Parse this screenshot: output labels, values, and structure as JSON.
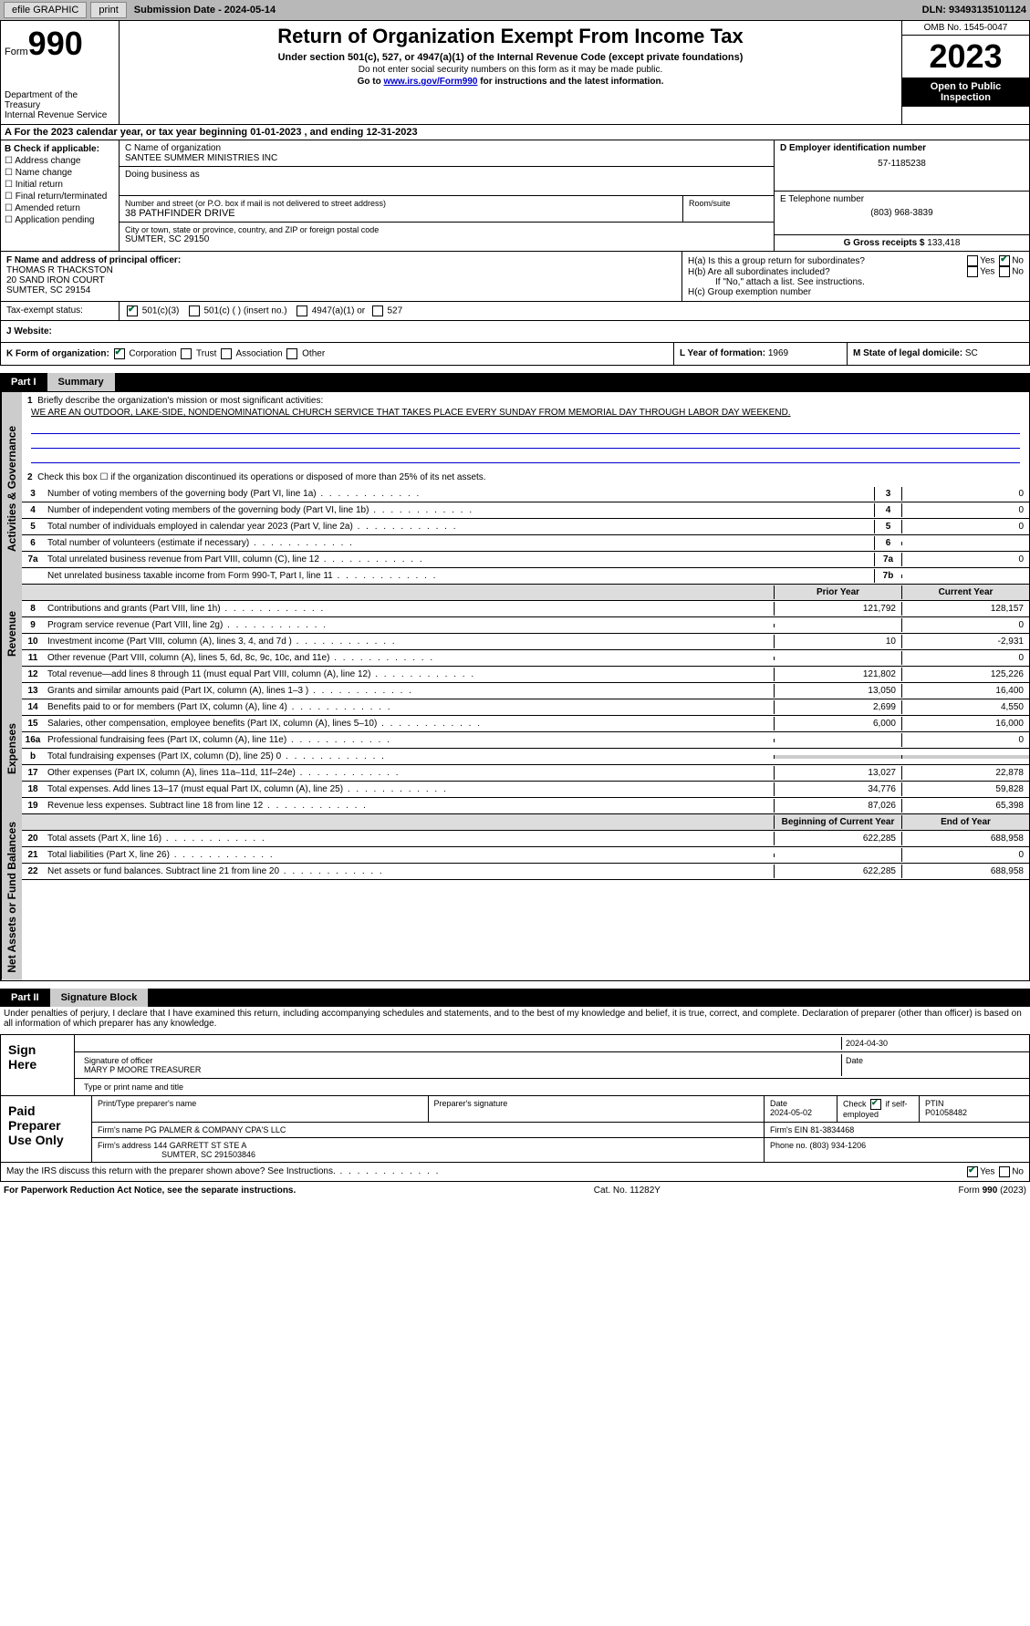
{
  "topbar": {
    "efile": "efile GRAPHIC",
    "print": "print",
    "submission_label": "Submission Date - ",
    "submission_date": "2024-05-14",
    "dln_label": "DLN: ",
    "dln": "93493135101124"
  },
  "header": {
    "form_label": "Form",
    "form_num": "990",
    "dept1": "Department of the Treasury",
    "dept2": "Internal Revenue Service",
    "title": "Return of Organization Exempt From Income Tax",
    "subtitle": "Under section 501(c), 527, or 4947(a)(1) of the Internal Revenue Code (except private foundations)",
    "instr1": "Do not enter social security numbers on this form as it may be made public.",
    "instr2_pre": "Go to ",
    "instr2_link": "www.irs.gov/Form990",
    "instr2_post": " for instructions and the latest information.",
    "omb": "OMB No. 1545-0047",
    "year": "2023",
    "open": "Open to Public Inspection"
  },
  "sectionA": {
    "text": "A  For the 2023 calendar year, or tax year beginning 01-01-2023    , and ending 12-31-2023"
  },
  "colB": {
    "label": "B Check if applicable:",
    "items": [
      "Address change",
      "Name change",
      "Initial return",
      "Final return/terminated",
      "Amended return",
      "Application pending"
    ]
  },
  "colC": {
    "name_label": "C Name of organization",
    "name": "SANTEE SUMMER MINISTRIES INC",
    "dba_label": "Doing business as",
    "addr_label": "Number and street (or P.O. box if mail is not delivered to street address)",
    "addr": "38 PATHFINDER DRIVE",
    "room_label": "Room/suite",
    "city_label": "City or town, state or province, country, and ZIP or foreign postal code",
    "city": "SUMTER, SC  29150"
  },
  "colD": {
    "ein_label": "D Employer identification number",
    "ein": "57-1185238",
    "phone_label": "E Telephone number",
    "phone": "(803) 968-3839",
    "gross_label": "G Gross receipts $ ",
    "gross": "133,418"
  },
  "rowF": {
    "label": "F  Name and address of principal officer:",
    "name": "THOMAS R THACKSTON",
    "addr": "20 SAND IRON COURT",
    "city": "SUMTER, SC  29154"
  },
  "rowH": {
    "ha_label": "H(a)  Is this a group return for subordinates?",
    "hb_label": "H(b)  Are all subordinates included?",
    "hb_note": "If \"No,\" attach a list. See instructions.",
    "hc_label": "H(c)  Group exemption number ",
    "yes": "Yes",
    "no": "No"
  },
  "rowI": {
    "label": "Tax-exempt status:",
    "opt1": "501(c)(3)",
    "opt2": "501(c) (  ) (insert no.)",
    "opt3": "4947(a)(1) or",
    "opt4": "527"
  },
  "rowJ": {
    "label": "J   Website: "
  },
  "rowK": {
    "k_label": "K Form of organization:",
    "corp": "Corporation",
    "trust": "Trust",
    "assoc": "Association",
    "other": "Other",
    "l_label": "L Year of formation: ",
    "l_val": "1969",
    "m_label": "M State of legal domicile: ",
    "m_val": "SC"
  },
  "part1": {
    "num": "Part I",
    "title": "Summary",
    "tab1": "Activities & Governance",
    "tab2": "Revenue",
    "tab3": "Expenses",
    "tab4": "Net Assets or Fund Balances",
    "line1_label": "Briefly describe the organization's mission or most significant activities:",
    "line1_text": "WE ARE AN OUTDOOR, LAKE-SIDE, NONDENOMINATIONAL CHURCH SERVICE THAT TAKES PLACE EVERY SUNDAY FROM MEMORIAL DAY THROUGH LABOR DAY WEEKEND.",
    "line2": "Check this box  ☐  if the organization discontinued its operations or disposed of more than 25% of its net assets.",
    "lines_boxed": [
      {
        "n": "3",
        "d": "Number of voting members of the governing body (Part VI, line 1a)",
        "bl": "3",
        "bv": "0"
      },
      {
        "n": "4",
        "d": "Number of independent voting members of the governing body (Part VI, line 1b)",
        "bl": "4",
        "bv": "0"
      },
      {
        "n": "5",
        "d": "Total number of individuals employed in calendar year 2023 (Part V, line 2a)",
        "bl": "5",
        "bv": "0"
      },
      {
        "n": "6",
        "d": "Total number of volunteers (estimate if necessary)",
        "bl": "6",
        "bv": ""
      },
      {
        "n": "7a",
        "d": "Total unrelated business revenue from Part VIII, column (C), line 12",
        "bl": "7a",
        "bv": "0"
      },
      {
        "n": "",
        "d": "Net unrelated business taxable income from Form 990-T, Part I, line 11",
        "bl": "7b",
        "bv": ""
      }
    ],
    "prior_hdr": "Prior Year",
    "curr_hdr": "Current Year",
    "revenue": [
      {
        "n": "8",
        "d": "Contributions and grants (Part VIII, line 1h)",
        "p": "121,792",
        "c": "128,157"
      },
      {
        "n": "9",
        "d": "Program service revenue (Part VIII, line 2g)",
        "p": "",
        "c": "0"
      },
      {
        "n": "10",
        "d": "Investment income (Part VIII, column (A), lines 3, 4, and 7d )",
        "p": "10",
        "c": "-2,931"
      },
      {
        "n": "11",
        "d": "Other revenue (Part VIII, column (A), lines 5, 6d, 8c, 9c, 10c, and 11e)",
        "p": "",
        "c": "0"
      },
      {
        "n": "12",
        "d": "Total revenue—add lines 8 through 11 (must equal Part VIII, column (A), line 12)",
        "p": "121,802",
        "c": "125,226"
      }
    ],
    "expenses": [
      {
        "n": "13",
        "d": "Grants and similar amounts paid (Part IX, column (A), lines 1–3 )",
        "p": "13,050",
        "c": "16,400"
      },
      {
        "n": "14",
        "d": "Benefits paid to or for members (Part IX, column (A), line 4)",
        "p": "2,699",
        "c": "4,550"
      },
      {
        "n": "15",
        "d": "Salaries, other compensation, employee benefits (Part IX, column (A), lines 5–10)",
        "p": "6,000",
        "c": "16,000"
      },
      {
        "n": "16a",
        "d": "Professional fundraising fees (Part IX, column (A), line 11e)",
        "p": "",
        "c": "0"
      },
      {
        "n": "b",
        "d": "Total fundraising expenses (Part IX, column (D), line 25) 0",
        "p": "gray",
        "c": "gray"
      },
      {
        "n": "17",
        "d": "Other expenses (Part IX, column (A), lines 11a–11d, 11f–24e)",
        "p": "13,027",
        "c": "22,878"
      },
      {
        "n": "18",
        "d": "Total expenses. Add lines 13–17 (must equal Part IX, column (A), line 25)",
        "p": "34,776",
        "c": "59,828"
      },
      {
        "n": "19",
        "d": "Revenue less expenses. Subtract line 18 from line 12",
        "p": "87,026",
        "c": "65,398"
      }
    ],
    "begin_hdr": "Beginning of Current Year",
    "end_hdr": "End of Year",
    "netassets": [
      {
        "n": "20",
        "d": "Total assets (Part X, line 16)",
        "p": "622,285",
        "c": "688,958"
      },
      {
        "n": "21",
        "d": "Total liabilities (Part X, line 26)",
        "p": "",
        "c": "0"
      },
      {
        "n": "22",
        "d": "Net assets or fund balances. Subtract line 21 from line 20",
        "p": "622,285",
        "c": "688,958"
      }
    ]
  },
  "part2": {
    "num": "Part II",
    "title": "Signature Block",
    "decl": "Under penalties of perjury, I declare that I have examined this return, including accompanying schedules and statements, and to the best of my knowledge and belief, it is true, correct, and complete. Declaration of preparer (other than officer) is based on all information of which preparer has any knowledge."
  },
  "sign": {
    "label": "Sign Here",
    "sig_label": "Signature of officer",
    "name": "MARY P MOORE  TREASURER",
    "name_label": "Type or print name and title",
    "date_label": "Date",
    "date": "2024-04-30"
  },
  "preparer": {
    "label": "Paid Preparer Use Only",
    "print_label": "Print/Type preparer's name",
    "sig_label": "Preparer's signature",
    "date_label": "Date",
    "date": "2024-05-02",
    "check_label": "Check",
    "self_label": "if self-employed",
    "ptin_label": "PTIN",
    "ptin": "P01058482",
    "firm_name_label": "Firm's name    ",
    "firm_name": "PG PALMER & COMPANY CPA'S LLC",
    "firm_ein_label": "Firm's EIN  ",
    "firm_ein": "81-3834468",
    "firm_addr_label": "Firm's address ",
    "firm_addr": "144 GARRETT ST STE A",
    "firm_city": "SUMTER, SC  291503846",
    "phone_label": "Phone no. ",
    "phone": "(803) 934-1206"
  },
  "discuss": {
    "text": "May the IRS discuss this return with the preparer shown above? See Instructions.",
    "yes": "Yes",
    "no": "No"
  },
  "footer": {
    "left": "For Paperwork Reduction Act Notice, see the separate instructions.",
    "center": "Cat. No. 11282Y",
    "right": "Form 990 (2023)"
  }
}
